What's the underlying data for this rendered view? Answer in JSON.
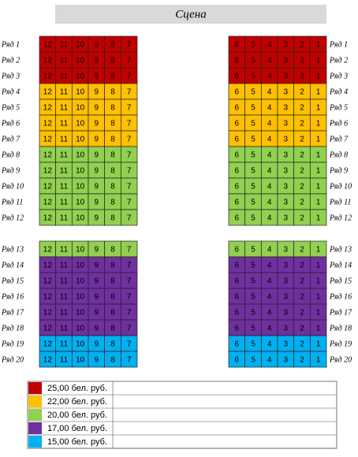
{
  "stage": "Сцена",
  "left_seats": [
    "12",
    "11",
    "10",
    "9",
    "8",
    "7"
  ],
  "right_seats": [
    "6",
    "5",
    "4",
    "3",
    "2",
    "1"
  ],
  "rows": [
    {
      "label": "Ряд 1",
      "price": 0
    },
    {
      "label": "Ряд 2",
      "price": 0
    },
    {
      "label": "Ряд 3",
      "price": 0
    },
    {
      "label": "Ряд 4",
      "price": 1
    },
    {
      "label": "Ряд 5",
      "price": 1
    },
    {
      "label": "Ряд 6",
      "price": 1
    },
    {
      "label": "Ряд 7",
      "price": 1
    },
    {
      "label": "Ряд 8",
      "price": 2
    },
    {
      "label": "Ряд 9",
      "price": 2
    },
    {
      "label": "Ряд 10",
      "price": 2
    },
    {
      "label": "Ряд 11",
      "price": 2
    },
    {
      "label": "Ряд 12",
      "price": 2
    },
    {
      "label": "Ряд 13",
      "price": 2
    },
    {
      "label": "Ряд 14",
      "price": 3
    },
    {
      "label": "Ряд 15",
      "price": 3
    },
    {
      "label": "Ряд 16",
      "price": 3
    },
    {
      "label": "Ряд 17",
      "price": 3
    },
    {
      "label": "Ряд 18",
      "price": 3
    },
    {
      "label": "Ряд 19",
      "price": 4
    },
    {
      "label": "Ряд 20",
      "price": 4
    }
  ],
  "legend": [
    {
      "color": "#c00000",
      "label": "25,00 бел. руб."
    },
    {
      "color": "#ffc000",
      "label": "22,00 бел. руб."
    },
    {
      "color": "#92d050",
      "label": "20,00 бел. руб."
    },
    {
      "color": "#7030a0",
      "label": "17,00 бел. руб."
    },
    {
      "color": "#00b0f0",
      "label": "15,00 бел. руб."
    }
  ]
}
